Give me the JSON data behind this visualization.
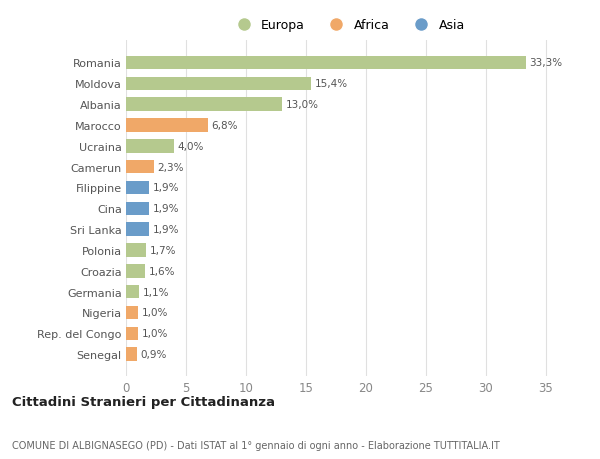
{
  "countries": [
    "Romania",
    "Moldova",
    "Albania",
    "Marocco",
    "Ucraina",
    "Camerun",
    "Filippine",
    "Cina",
    "Sri Lanka",
    "Polonia",
    "Croazia",
    "Germania",
    "Nigeria",
    "Rep. del Congo",
    "Senegal"
  ],
  "values": [
    33.3,
    15.4,
    13.0,
    6.8,
    4.0,
    2.3,
    1.9,
    1.9,
    1.9,
    1.7,
    1.6,
    1.1,
    1.0,
    1.0,
    0.9
  ],
  "labels": [
    "33,3%",
    "15,4%",
    "13,0%",
    "6,8%",
    "4,0%",
    "2,3%",
    "1,9%",
    "1,9%",
    "1,9%",
    "1,7%",
    "1,6%",
    "1,1%",
    "1,0%",
    "1,0%",
    "0,9%"
  ],
  "continents": [
    "Europa",
    "Europa",
    "Europa",
    "Africa",
    "Europa",
    "Africa",
    "Asia",
    "Asia",
    "Asia",
    "Europa",
    "Europa",
    "Europa",
    "Africa",
    "Africa",
    "Africa"
  ],
  "colors": {
    "Europa": "#b5c98e",
    "Africa": "#f0a868",
    "Asia": "#6a9cc9"
  },
  "title": "Cittadini Stranieri per Cittadinanza",
  "subtitle": "COMUNE DI ALBIGNASEGO (PD) - Dati ISTAT al 1° gennaio di ogni anno - Elaborazione TUTTITALIA.IT",
  "xlim": [
    0,
    37
  ],
  "xticks": [
    0,
    5,
    10,
    15,
    20,
    25,
    30,
    35
  ],
  "background_color": "#ffffff",
  "plot_bg_color": "#ffffff",
  "grid_color": "#e0e0e0"
}
